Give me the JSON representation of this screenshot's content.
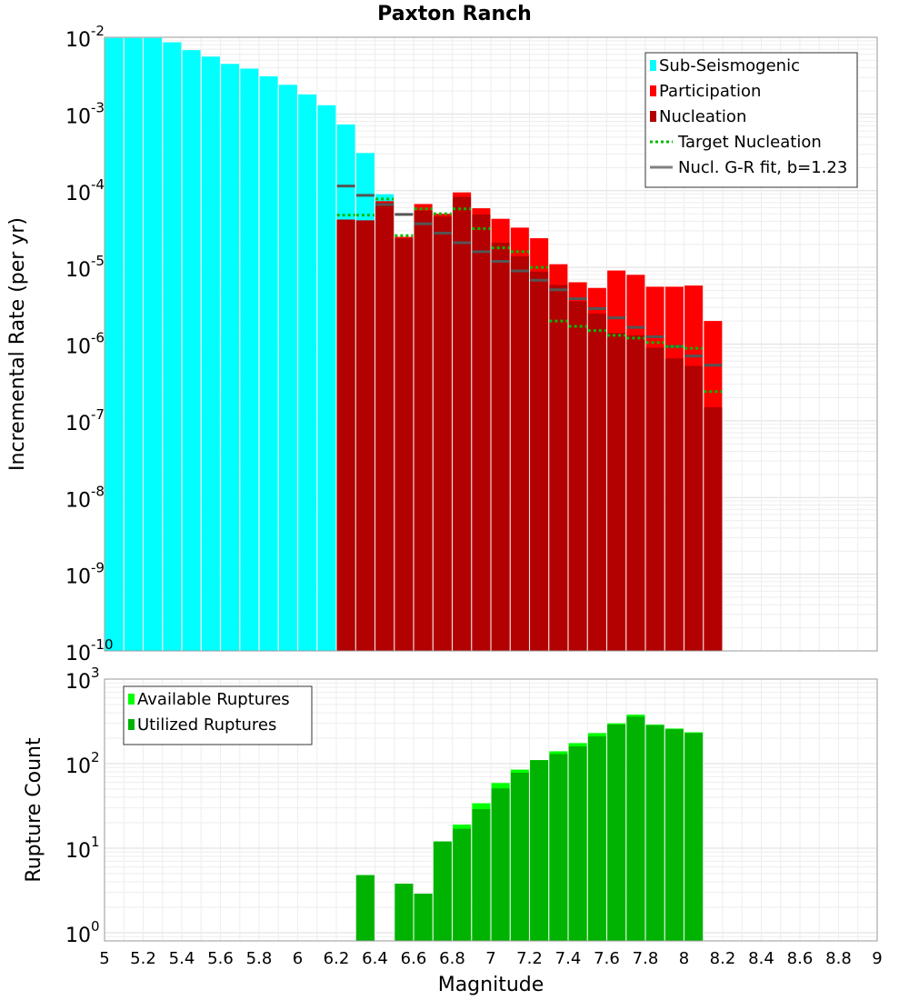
{
  "chart_data": [
    {
      "type": "bar",
      "title": "Paxton Ranch",
      "xlabel": "",
      "ylabel": "Incremental Rate (per yr)",
      "yscale": "log",
      "ylim": [
        1e-10,
        0.01
      ],
      "xlim": [
        5,
        9
      ],
      "grid": true,
      "legend_position": "top-right",
      "y_tick_labels": [
        {
          "base": "10",
          "exp": "-2"
        },
        {
          "base": "10",
          "exp": "-3"
        },
        {
          "base": "10",
          "exp": "-4"
        },
        {
          "base": "10",
          "exp": "-5"
        },
        {
          "base": "10",
          "exp": "-6"
        },
        {
          "base": "10",
          "exp": "-7"
        },
        {
          "base": "10",
          "exp": "-8"
        },
        {
          "base": "10",
          "exp": "-9"
        },
        {
          "base": "10",
          "exp": "-10"
        }
      ],
      "legend": [
        {
          "label": "Sub-Seismogenic",
          "color": "#00ffff",
          "kind": "bar"
        },
        {
          "label": "Participation",
          "color": "#ff0000",
          "kind": "bar"
        },
        {
          "label": "Nucleation",
          "color": "#b30000",
          "kind": "bar"
        },
        {
          "label": "Target Nucleation",
          "color": "#00bb00",
          "kind": "dotted"
        },
        {
          "label": "Nucl. G-R fit, b=1.23",
          "color": "#808080",
          "kind": "line"
        }
      ],
      "series": [
        {
          "name": "Sub-Seismogenic",
          "color": "#00ffff",
          "x": [
            5.05,
            5.15,
            5.25,
            5.35,
            5.45,
            5.55,
            5.65,
            5.75,
            5.85,
            5.95,
            6.05,
            6.15,
            6.25,
            6.35,
            6.45
          ],
          "values": [
            0.0098,
            0.0098,
            0.0098,
            0.0086,
            0.0068,
            0.0056,
            0.0045,
            0.0039,
            0.0031,
            0.0024,
            0.0018,
            0.0013,
            0.00073,
            0.00031,
            9e-05
          ]
        },
        {
          "name": "Participation",
          "color": "#ff0000",
          "x": [
            6.25,
            6.35,
            6.45,
            6.55,
            6.65,
            6.75,
            6.85,
            6.95,
            7.05,
            7.15,
            7.25,
            7.35,
            7.45,
            7.55,
            7.65,
            7.75,
            7.85,
            7.95,
            8.05,
            8.15
          ],
          "values": [
            4.2e-05,
            4.1e-05,
            7.3e-05,
            2.5e-05,
            6.7e-05,
            5e-05,
            9.5e-05,
            5.9e-05,
            4.3e-05,
            3.3e-05,
            2.4e-05,
            1.1e-05,
            6.4e-06,
            5.4e-06,
            9.1e-06,
            8e-06,
            5.6e-06,
            5.6e-06,
            5.8e-06,
            2e-06
          ]
        },
        {
          "name": "Nucleation",
          "color": "#b30000",
          "x": [
            6.25,
            6.35,
            6.45,
            6.55,
            6.65,
            6.75,
            6.85,
            6.95,
            7.05,
            7.15,
            7.25,
            7.35,
            7.45,
            7.55,
            7.65,
            7.75,
            7.85,
            7.95,
            8.05,
            8.15
          ],
          "values": [
            4.2e-05,
            4.1e-05,
            7e-05,
            2.4e-05,
            5.5e-05,
            4.6e-05,
            8.3e-05,
            4.9e-05,
            2.1e-05,
            1.4e-05,
            8.8e-06,
            5.9e-06,
            3.6e-06,
            2.5e-06,
            1.4e-06,
            1.3e-06,
            9e-07,
            6.5e-07,
            5.2e-07,
            1.5e-07
          ]
        },
        {
          "name": "Target Nucleation",
          "color": "#00bb00",
          "x": [
            6.25,
            6.35,
            6.45,
            6.55,
            6.65,
            6.75,
            6.85,
            6.95,
            7.05,
            7.15,
            7.25,
            7.35,
            7.45,
            7.55,
            7.65,
            7.75,
            7.85,
            7.95,
            8.05,
            8.15
          ],
          "values": [
            4.8e-05,
            4.8e-05,
            7.8e-05,
            2.6e-05,
            5.8e-05,
            5e-05,
            5.8e-05,
            3.2e-05,
            1.8e-05,
            1.6e-05,
            1e-05,
            2e-06,
            1.7e-06,
            1.5e-06,
            1.3e-06,
            1.2e-06,
            1.05e-06,
            9.3e-07,
            8.8e-07,
            2.4e-07
          ]
        },
        {
          "name": "Nucl. G-R fit, b=1.23",
          "color": "#808080",
          "x": [
            6.25,
            6.35,
            6.45,
            6.55,
            6.65,
            6.75,
            6.85,
            6.95,
            7.05,
            7.15,
            7.25,
            7.35,
            7.45,
            7.55,
            7.65,
            7.75,
            7.85,
            7.95,
            8.05,
            8.15
          ],
          "values": [
            0.000115,
            8.7e-05,
            6.6e-05,
            4.9e-05,
            3.7e-05,
            2.8e-05,
            2.1e-05,
            1.6e-05,
            1.2e-05,
            9e-06,
            6.8e-06,
            5.1e-06,
            3.9e-06,
            2.9e-06,
            2.2e-06,
            1.65e-06,
            1.25e-06,
            9.3e-07,
            7e-07,
            5.3e-07
          ]
        }
      ]
    },
    {
      "type": "bar",
      "title": "",
      "xlabel": "Magnitude",
      "ylabel": "Rupture Count",
      "yscale": "log",
      "ylim": [
        0.8,
        1000
      ],
      "xlim": [
        5,
        9
      ],
      "grid": true,
      "legend_position": "top-left",
      "x_tick_labels": [
        "5",
        "5.2",
        "5.4",
        "5.6",
        "5.8",
        "6",
        "6.2",
        "6.4",
        "6.6",
        "6.8",
        "7",
        "7.2",
        "7.4",
        "7.6",
        "7.8",
        "8",
        "8.2",
        "8.4",
        "8.6",
        "8.8",
        "9"
      ],
      "y_tick_labels": [
        {
          "base": "10",
          "exp": "3"
        },
        {
          "base": "10",
          "exp": "2"
        },
        {
          "base": "10",
          "exp": "1"
        },
        {
          "base": "10",
          "exp": "0"
        }
      ],
      "legend": [
        {
          "label": "Available Ruptures",
          "color": "#00ff00",
          "kind": "bar"
        },
        {
          "label": "Utilized Ruptures",
          "color": "#00b300",
          "kind": "bar"
        }
      ],
      "series": [
        {
          "name": "Available Ruptures",
          "color": "#00ff00",
          "x": [
            6.35,
            6.55,
            6.65,
            6.75,
            6.85,
            6.95,
            7.05,
            7.15,
            7.25,
            7.35,
            7.45,
            7.55,
            7.65,
            7.75,
            7.85,
            7.95,
            8.05
          ],
          "values": [
            4.8,
            3.8,
            2.9,
            12,
            19,
            34,
            59,
            85,
            110,
            140,
            175,
            230,
            300,
            380,
            290,
            260,
            235
          ]
        },
        {
          "name": "Utilized Ruptures",
          "color": "#00b300",
          "x": [
            6.35,
            6.55,
            6.65,
            6.75,
            6.85,
            6.95,
            7.05,
            7.15,
            7.25,
            7.35,
            7.45,
            7.55,
            7.65,
            7.75,
            7.85,
            7.95,
            8.05
          ],
          "values": [
            4.8,
            3.8,
            2.9,
            12,
            17,
            29,
            51,
            78,
            110,
            130,
            160,
            210,
            290,
            360,
            285,
            255,
            230
          ]
        }
      ]
    }
  ]
}
